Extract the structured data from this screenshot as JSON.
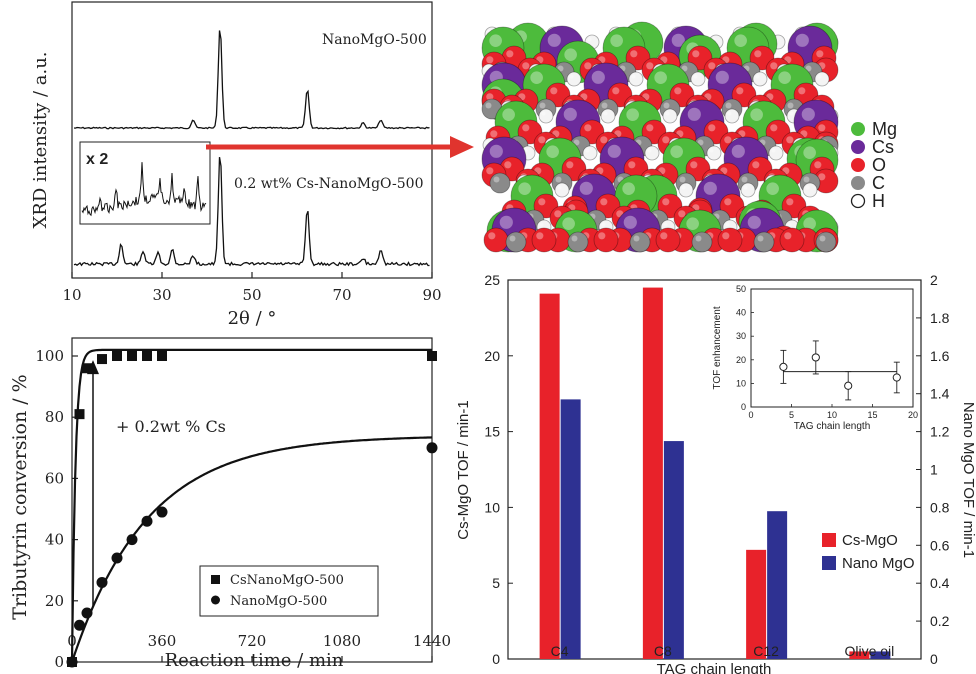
{
  "figure": {
    "arrow_color": "#e0342e",
    "structure_legend": [
      {
        "label": "Mg",
        "color": "#4dbb3c",
        "symbol": "filled"
      },
      {
        "label": "Cs",
        "color": "#6a2a9a",
        "symbol": "filled"
      },
      {
        "label": "O",
        "color": "#e8222a",
        "symbol": "filled"
      },
      {
        "label": "C",
        "color": "#8a8a8a",
        "symbol": "filled"
      },
      {
        "label": "H",
        "color": "#ffffff",
        "symbol": "open"
      }
    ]
  },
  "chart_data": [
    {
      "id": "xrd",
      "type": "line",
      "xlabel": "2θ / °",
      "ylabel": "XRD intensity / a.u.",
      "xlim": [
        10,
        90
      ],
      "xticks": [
        "10",
        "30",
        "50",
        "70",
        "90"
      ],
      "series": [
        {
          "name": "NanoMgO-500",
          "peaks": [
            [
              36.9,
              0.08
            ],
            [
              42.9,
              1.0
            ],
            [
              62.3,
              0.38
            ],
            [
              74.7,
              0.05
            ],
            [
              78.6,
              0.08
            ]
          ]
        },
        {
          "name": "0.2 wt% Cs-NanoMgO-500",
          "peaks": [
            [
              20.9,
              0.18
            ],
            [
              25.8,
              0.12
            ],
            [
              29.1,
              0.1
            ],
            [
              32.3,
              0.13
            ],
            [
              36.9,
              0.08
            ],
            [
              42.9,
              1.0
            ],
            [
              62.3,
              0.5
            ],
            [
              74.7,
              0.05
            ],
            [
              78.6,
              0.14
            ]
          ]
        }
      ],
      "inset_label": "x 2"
    },
    {
      "id": "conversion",
      "type": "scatter",
      "xlabel": "Reaction time / min",
      "ylabel": "Tributyrin conversion / %",
      "xlim": [
        0,
        1440
      ],
      "ylim": [
        0,
        100
      ],
      "xticks": [
        "0",
        "360",
        "720",
        "1080",
        "1440"
      ],
      "yticks": [
        "0",
        "20",
        "40",
        "60",
        "80",
        "100"
      ],
      "annotation": "+ 0.2wt % Cs",
      "series": [
        {
          "name": "CsNanoMgO-500",
          "marker": "square",
          "x": [
            0,
            30,
            60,
            120,
            180,
            240,
            300,
            360,
            1440
          ],
          "y": [
            0,
            81,
            96,
            99,
            100,
            100,
            100,
            100,
            100
          ]
        },
        {
          "name": "NanoMgO-500",
          "marker": "circle",
          "x": [
            0,
            30,
            60,
            120,
            180,
            240,
            300,
            360,
            1440
          ],
          "y": [
            0,
            12,
            16,
            26,
            34,
            40,
            46,
            49,
            70
          ]
        }
      ]
    },
    {
      "id": "tof",
      "type": "bar",
      "xlabel": "TAG chain length",
      "ylabel": "Cs-MgO TOF / min-1",
      "y2label": "Nano MgO TOF / min-1",
      "categories": [
        "C4",
        "C8",
        "C12",
        "Olive oil"
      ],
      "ylim": [
        0,
        25
      ],
      "y2lim": [
        0,
        2
      ],
      "yticks": [
        "0",
        "5",
        "10",
        "15",
        "20",
        "25"
      ],
      "y2ticks": [
        "0",
        "0.2",
        "0.4",
        "0.6",
        "0.8",
        "1",
        "1.2",
        "1.4",
        "1.6",
        "1.8",
        "2"
      ],
      "series": [
        {
          "name": "Cs-MgO",
          "color": "#e8222a",
          "axis": "left",
          "values": [
            24.1,
            24.5,
            7.2,
            0.5
          ]
        },
        {
          "name": "Nano MgO",
          "color": "#2e3192",
          "axis": "right",
          "values": [
            1.37,
            1.15,
            0.78,
            0.04
          ]
        }
      ]
    },
    {
      "id": "tof-inset",
      "type": "scatter",
      "xlabel": "TAG chain length",
      "ylabel": "TOF enhancement",
      "xlim": [
        0,
        20
      ],
      "ylim": [
        0,
        50
      ],
      "xticks": [
        "0",
        "5",
        "10",
        "15",
        "20"
      ],
      "yticks": [
        "0",
        "10",
        "20",
        "30",
        "40",
        "50"
      ],
      "x": [
        4,
        8,
        12,
        18
      ],
      "y": [
        17,
        21,
        9,
        12.5
      ],
      "error": [
        7,
        7,
        6,
        6.5
      ],
      "mean": 15
    }
  ]
}
